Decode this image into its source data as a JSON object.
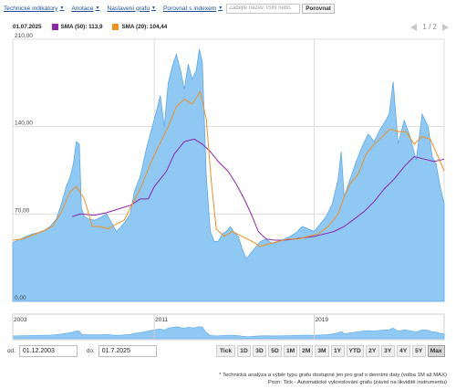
{
  "toolbar": {
    "indicators": "Technické indikátory",
    "annotations": "Anotace",
    "settings": "Nastavení grafu",
    "compare_index": "Porovnat s indexem",
    "search_placeholder": "Zadejte název, ISIN nebo",
    "compare_button": "Porovnat"
  },
  "legend": {
    "date": "01.07.2025",
    "sma50": "SMA (50): 113,9",
    "sma20": "SMA (20): 104,44"
  },
  "colors": {
    "sma50": "#8e24aa",
    "sma20": "#f0901e",
    "area_fill": "#90c8f4",
    "area_stroke": "#5aa8ea",
    "grid": "#dcdcdc"
  },
  "pager": {
    "text": "1 / 2",
    "prev_icon": "chevron-left-icon",
    "next_icon": "chevron-right-icon"
  },
  "chart_data": {
    "type": "area",
    "y_ticks": [
      "210,00",
      "140,00",
      "70,00",
      "0,00"
    ],
    "ylim": [
      0,
      210
    ],
    "xlim": [
      2003.92,
      2025.5
    ],
    "series": [
      {
        "name": "",
        "type": "area",
        "x": [
          2003.92,
          2004.3,
          2004.6,
          2004.9,
          2005.2,
          2005.5,
          2005.8,
          2006.1,
          2006.35,
          2006.6,
          2006.8,
          2006.95,
          2007.1,
          2007.25,
          2007.35,
          2007.5,
          2007.7,
          2008.0,
          2008.3,
          2008.6,
          2008.9,
          2009.1,
          2009.3,
          2009.55,
          2009.8,
          2010.0,
          2010.3,
          2010.6,
          2010.9,
          2011.1,
          2011.3,
          2011.5,
          2011.7,
          2011.9,
          2012.1,
          2012.3,
          2012.5,
          2012.7,
          2012.9,
          2013.1,
          2013.25,
          2013.4,
          2013.6,
          2013.8,
          2014.0,
          2014.2,
          2014.4,
          2014.6,
          2014.8,
          2015.0,
          2015.2,
          2015.4,
          2015.6,
          2015.8,
          2016.0,
          2016.3,
          2016.6,
          2016.9,
          2017.2,
          2017.5,
          2017.8,
          2018.1,
          2018.4,
          2018.7,
          2019.0,
          2019.3,
          2019.6,
          2019.9,
          2020.2,
          2020.35,
          2020.5,
          2020.8,
          2021.1,
          2021.4,
          2021.7,
          2022.0,
          2022.3,
          2022.55,
          2022.75,
          2022.95,
          2023.2,
          2023.5,
          2023.8,
          2024.1,
          2024.4,
          2024.7,
          2024.9,
          2025.1,
          2025.3,
          2025.5
        ],
        "y": [
          47,
          50,
          52,
          54,
          55,
          57,
          60,
          66,
          78,
          92,
          100,
          110,
          128,
          126,
          75,
          68,
          66,
          65,
          67,
          70,
          62,
          56,
          59,
          64,
          70,
          88,
          100,
          122,
          140,
          152,
          165,
          140,
          175,
          188,
          198,
          186,
          170,
          190,
          178,
          185,
          202,
          192,
          100,
          56,
          48,
          48,
          54,
          56,
          60,
          55,
          52,
          42,
          34,
          38,
          42,
          48,
          50,
          46,
          48,
          50,
          52,
          55,
          60,
          58,
          56,
          62,
          68,
          78,
          98,
          120,
          84,
          98,
          112,
          124,
          134,
          128,
          138,
          144,
          150,
          176,
          126,
          145,
          132,
          113,
          150,
          140,
          116,
          110,
          92,
          78
        ]
      },
      {
        "name": "SMA (50)",
        "x": [
          2006.9,
          2007.3,
          2008.0,
          2008.6,
          2009.2,
          2009.8,
          2010.3,
          2010.7,
          2011.0,
          2011.6,
          2012.0,
          2012.5,
          2013.0,
          2013.4,
          2013.8,
          2014.2,
          2014.7,
          2015.1,
          2015.5,
          2015.9,
          2016.2,
          2016.6,
          2017.0,
          2017.5,
          2018.0,
          2018.5,
          2019.0,
          2019.5,
          2020.0,
          2020.5,
          2021.0,
          2021.5,
          2022.0,
          2022.5,
          2023.0,
          2023.5,
          2024.0,
          2024.5,
          2025.0,
          2025.5
        ],
        "y": [
          68,
          70,
          69,
          71,
          74,
          77,
          82,
          82,
          92,
          104,
          118,
          128,
          130,
          126,
          120,
          112,
          104,
          94,
          82,
          68,
          56,
          50,
          49,
          49,
          50,
          51,
          52,
          54,
          56,
          60,
          66,
          72,
          80,
          90,
          98,
          108,
          116,
          114,
          112,
          113.9
        ]
      },
      {
        "name": "SMA (20)",
        "x": [
          2003.92,
          2004.4,
          2004.9,
          2005.4,
          2005.9,
          2006.3,
          2006.8,
          2007.1,
          2007.5,
          2007.9,
          2008.3,
          2008.7,
          2009.1,
          2009.5,
          2009.9,
          2010.3,
          2010.8,
          2011.2,
          2011.7,
          2012.1,
          2012.5,
          2012.9,
          2013.3,
          2013.6,
          2013.85,
          2014.1,
          2014.5,
          2014.9,
          2015.4,
          2015.9,
          2016.3,
          2016.7,
          2017.2,
          2017.7,
          2018.2,
          2018.7,
          2019.2,
          2019.7,
          2020.2,
          2020.5,
          2020.8,
          2021.2,
          2021.6,
          2022.0,
          2022.4,
          2022.8,
          2023.2,
          2023.6,
          2024.0,
          2024.4,
          2024.8,
          2025.2,
          2025.5
        ],
        "y": [
          49,
          50,
          53,
          56,
          60,
          70,
          88,
          92,
          82,
          60,
          60,
          58,
          62,
          65,
          78,
          90,
          110,
          124,
          140,
          156,
          162,
          158,
          168,
          146,
          96,
          58,
          52,
          56,
          52,
          48,
          44,
          46,
          48,
          50,
          50,
          52,
          54,
          60,
          70,
          84,
          94,
          102,
          118,
          126,
          132,
          138,
          136,
          136,
          126,
          132,
          130,
          116,
          104.44
        ]
      }
    ]
  },
  "navigator": {
    "labels": [
      "2003",
      "2011",
      "2019"
    ],
    "tick_years": [
      2003.92,
      2011.0,
      2019.0
    ]
  },
  "date_range": {
    "from_label": "od:",
    "from": "01.12.2003",
    "to_label": "do:",
    "to": "01.7.2025"
  },
  "periods": [
    "Tick",
    "1D",
    "3D",
    "5D",
    "1M",
    "2M",
    "3M",
    "1Y",
    "YTD",
    "2Y",
    "3Y",
    "4Y",
    "5Y",
    "Max"
  ],
  "active_period": "Max",
  "footnote": {
    "line1": "* Technická analýza a výběr typu grafu dostupné jen pro graf s denními daty (volba 1M až MAX)",
    "line2": "Pozn: Tick - Automatické vykreslování grafu (závisí na likviditě instrumentu)"
  }
}
